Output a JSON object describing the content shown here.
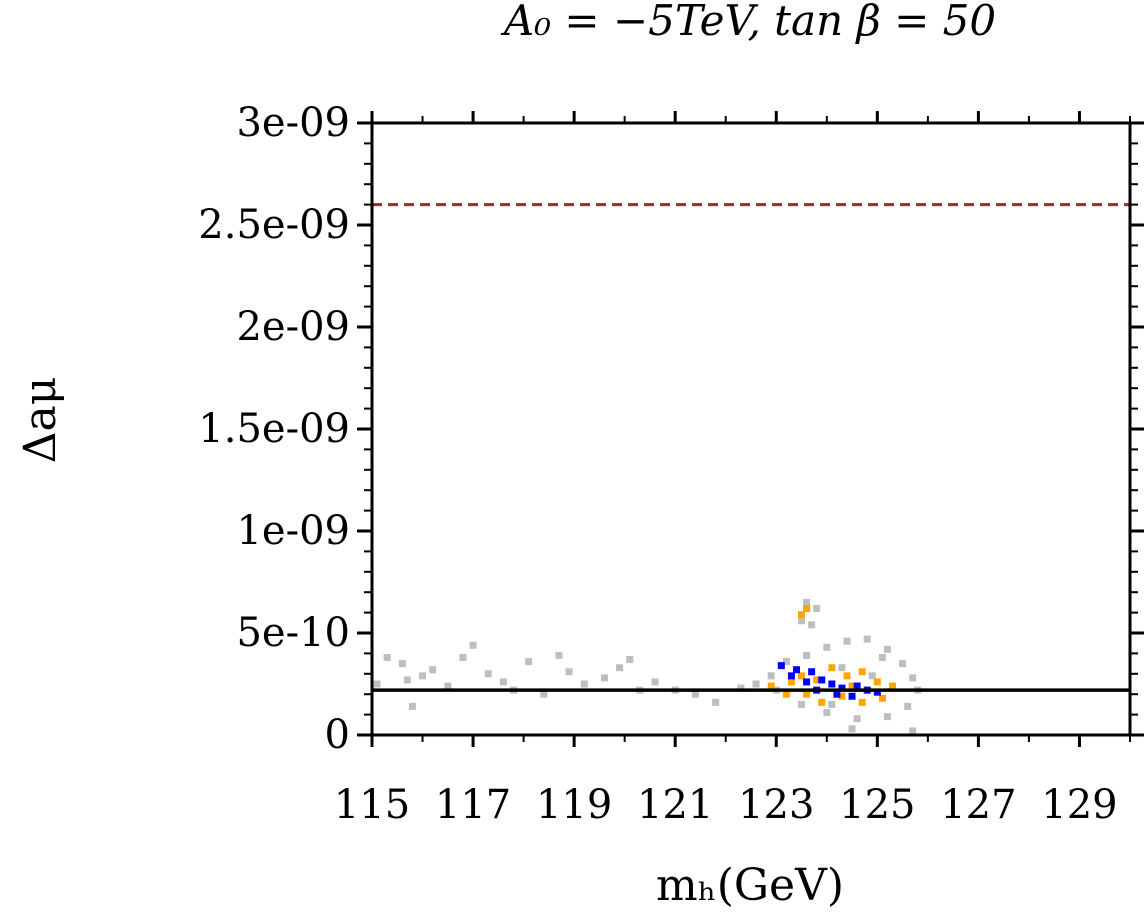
{
  "chart_data": {
    "type": "scatter",
    "title": "A₀ = −5TeV, tan β = 50",
    "xlabel": "mₕ(GeV)",
    "ylabel": "Δaμ",
    "xlim": [
      115,
      130
    ],
    "ylim": [
      0,
      3e-09
    ],
    "x_ticks": [
      "115",
      "117",
      "119",
      "121",
      "123",
      "125",
      "127",
      "129"
    ],
    "x_tick_values": [
      115,
      117,
      119,
      121,
      123,
      125,
      127,
      129
    ],
    "y_ticks": [
      "0",
      "5e-10",
      "1e-09",
      "1.5e-09",
      "2e-09",
      "2.5e-09",
      "3e-09"
    ],
    "y_tick_values": [
      0,
      5e-10,
      1e-09,
      1.5e-09,
      2e-09,
      2.5e-09,
      3e-09
    ],
    "grid": false,
    "reference_lines": [
      {
        "y": 2.6e-09,
        "style": "dashed",
        "color": "#a52a2a"
      },
      {
        "y": 2.2e-10,
        "style": "solid",
        "color": "#000000"
      }
    ],
    "series": [
      {
        "color": "#bebebe",
        "points": [
          [
            115.1,
            2.5e-10
          ],
          [
            115.3,
            3.8e-10
          ],
          [
            115.6,
            3.5e-10
          ],
          [
            115.7,
            2.7e-10
          ],
          [
            115.8,
            1.4e-10
          ],
          [
            116.0,
            2.9e-10
          ],
          [
            116.2,
            3.2e-10
          ],
          [
            116.5,
            2.4e-10
          ],
          [
            116.8,
            3.8e-10
          ],
          [
            117.0,
            4.4e-10
          ],
          [
            117.3,
            3e-10
          ],
          [
            117.6,
            2.6e-10
          ],
          [
            117.8,
            2.2e-10
          ],
          [
            118.1,
            3.6e-10
          ],
          [
            118.4,
            2e-10
          ],
          [
            118.7,
            3.9e-10
          ],
          [
            118.9,
            3.1e-10
          ],
          [
            119.2,
            2.5e-10
          ],
          [
            119.6,
            2.8e-10
          ],
          [
            119.9,
            3.3e-10
          ],
          [
            120.1,
            3.7e-10
          ],
          [
            120.3,
            2.2e-10
          ],
          [
            120.6,
            2.6e-10
          ],
          [
            121.0,
            2.2e-10
          ],
          [
            121.4,
            2e-10
          ],
          [
            121.8,
            1.6e-10
          ],
          [
            122.3,
            2.3e-10
          ],
          [
            122.6,
            2.5e-10
          ],
          [
            122.9,
            2.9e-10
          ],
          [
            123.6,
            6.5e-10
          ],
          [
            123.8,
            6.2e-10
          ],
          [
            123.5,
            5.6e-10
          ],
          [
            123.7,
            5.4e-10
          ],
          [
            123.2,
            3.6e-10
          ],
          [
            123.6,
            3.9e-10
          ],
          [
            124.0,
            4.3e-10
          ],
          [
            124.4,
            4.6e-10
          ],
          [
            124.8,
            4.7e-10
          ],
          [
            125.2,
            4.2e-10
          ],
          [
            125.5,
            3.5e-10
          ],
          [
            125.7,
            2.8e-10
          ],
          [
            125.8,
            2.2e-10
          ],
          [
            125.6,
            1.4e-10
          ],
          [
            125.2,
            9e-11
          ],
          [
            124.6,
            8e-11
          ],
          [
            124.0,
            1.1e-10
          ],
          [
            123.5,
            1.5e-10
          ],
          [
            123.0,
            2.2e-10
          ],
          [
            124.3,
            3.3e-10
          ],
          [
            124.9,
            2.9e-10
          ],
          [
            125.1,
            3.8e-10
          ],
          [
            124.1,
            1.5e-10
          ],
          [
            125.7,
            2e-11
          ],
          [
            124.5,
            3e-11
          ]
        ]
      },
      {
        "color": "#ffa500",
        "points": [
          [
            123.5,
            5.9e-10
          ],
          [
            123.6,
            6.2e-10
          ],
          [
            122.9,
            2.4e-10
          ],
          [
            123.2,
            2e-10
          ],
          [
            123.5,
            2.9e-10
          ],
          [
            123.8,
            2.7e-10
          ],
          [
            124.1,
            3.3e-10
          ],
          [
            124.4,
            2.9e-10
          ],
          [
            124.7,
            3.1e-10
          ],
          [
            125.0,
            2.6e-10
          ],
          [
            125.3,
            2.4e-10
          ],
          [
            125.1,
            1.8e-10
          ],
          [
            124.7,
            1.6e-10
          ],
          [
            124.3,
            1.9e-10
          ],
          [
            123.9,
            1.6e-10
          ],
          [
            123.6,
            2e-10
          ],
          [
            124.5,
            2.4e-10
          ],
          [
            123.3,
            2.6e-10
          ]
        ]
      },
      {
        "color": "#0000ff",
        "points": [
          [
            123.1,
            3.4e-10
          ],
          [
            123.4,
            3.2e-10
          ],
          [
            123.3,
            2.9e-10
          ],
          [
            123.7,
            3.1e-10
          ],
          [
            123.6,
            2.6e-10
          ],
          [
            123.9,
            2.7e-10
          ],
          [
            124.1,
            2.5e-10
          ],
          [
            124.3,
            2.3e-10
          ],
          [
            124.6,
            2.4e-10
          ],
          [
            124.8,
            2.2e-10
          ],
          [
            124.2,
            2e-10
          ],
          [
            123.8,
            2.2e-10
          ],
          [
            125.0,
            2.1e-10
          ],
          [
            124.5,
            1.9e-10
          ]
        ]
      }
    ]
  }
}
